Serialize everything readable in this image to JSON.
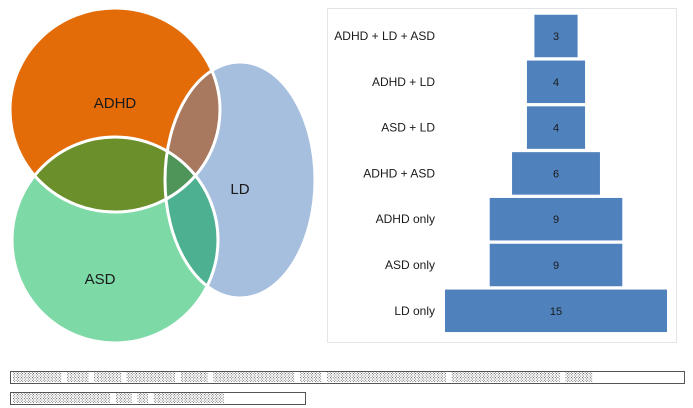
{
  "chart_data": [
    {
      "type": "venn",
      "sets": [
        {
          "name": "ADHD",
          "color": "#E36C09"
        },
        {
          "name": "LD",
          "color": "#A7BFDE"
        },
        {
          "name": "ASD",
          "color": "#7DD9A6"
        }
      ],
      "overlap_colors": {
        "ADHD+LD": "#A8785F",
        "ADHD+ASD": "#6B8F2A",
        "LD+ASD": "#4DB091",
        "ADHD+LD+ASD": "#4F9459"
      },
      "outline_color": "#ffffff"
    },
    {
      "type": "bar",
      "orientation": "horizontal",
      "style": "centered-funnel",
      "categories": [
        "ADHD + LD + ASD",
        "ADHD + LD",
        "ASD + LD",
        "ADHD + ASD",
        "ADHD only",
        "ASD only",
        "LD only"
      ],
      "values": [
        3,
        4,
        4,
        6,
        9,
        9,
        15
      ],
      "bar_color": "#4F81BD",
      "bar_border_color": "#ffffff",
      "label_color": "#1a1a1a"
    }
  ],
  "footnotes": [
    "░░░░░░░░░ ░░░░ ░░░░░ ░░░░░░░░░ ░░░░░ ░░░░░░░░░░░░░░░ ░░░░ ░░░░░░░░░░░░░░░░░░░░░░ ░░░░░░░░░░░░░░░░░░░░ ░░░░░",
    "░░░░░░░░░░░░░░░░░░ ░░░ ░░ ░░░░░░░░░░░░░"
  ]
}
